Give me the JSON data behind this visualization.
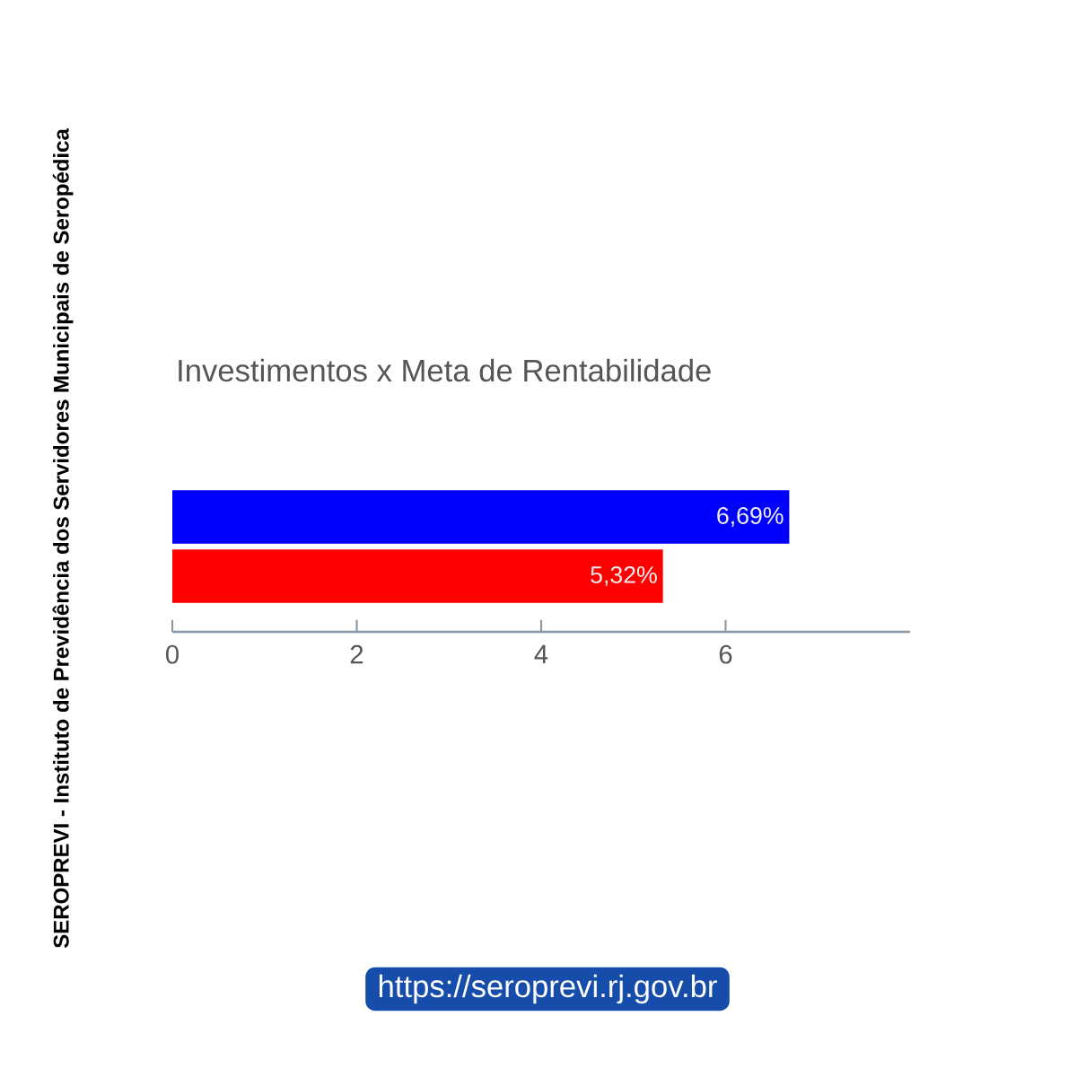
{
  "chart_data": {
    "type": "bar",
    "orientation": "horizontal",
    "title": "Investimentos x Meta de Rentabilidade",
    "categories": [
      null,
      null
    ],
    "values": [
      6.69,
      5.32
    ],
    "colors": [
      "#0000ff",
      "#ff0000"
    ],
    "value_labels": [
      "6,69%",
      "5,32%"
    ],
    "xlim": [
      0,
      8
    ],
    "xticks": [
      0,
      2,
      4,
      6
    ],
    "tick_labels": "x",
    "annotations": [
      "SEROPREVI - Instituto de Previdência dos Servidores Municipais de Seropédica",
      "https://seroprevi.rj.gov.br"
    ]
  }
}
